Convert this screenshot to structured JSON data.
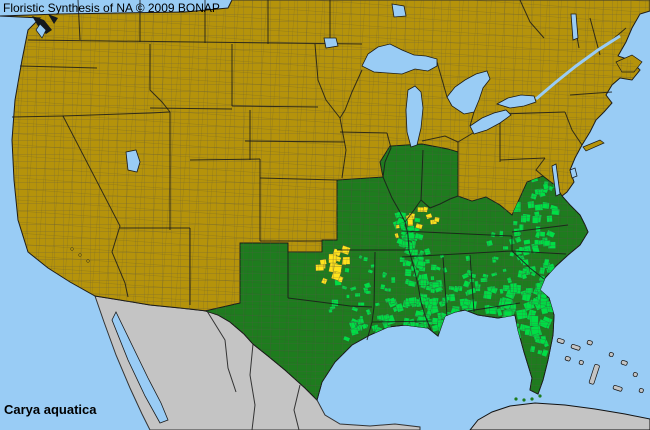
{
  "header": {
    "attribution": "Floristic Synthesis of NA © 2009 BONAP"
  },
  "footer": {
    "species_name": "Carya aquatica"
  },
  "map": {
    "kind": "county-level species distribution map",
    "area_shown": "North America: contiguous United States, southern Canada, northern Mexico, Cuba and Bahamas",
    "colors": {
      "water": "#99CCF5",
      "land_no_record": "#B5930B",
      "land_outside_scope": "#C4C4C4",
      "state_present": "#1E7C1E",
      "county_present": "#00DE45",
      "county_rare": "#FFE31C",
      "state_border": "#1A1A1A",
      "county_border": "#6F6F6F",
      "foreign_border": "#333333",
      "text": "#000000"
    },
    "distribution": {
      "state_level_presence": [
        "Texas",
        "Oklahoma",
        "Missouri",
        "Illinois",
        "Indiana",
        "Kentucky",
        "Virginia",
        "Tennessee",
        "Arkansas",
        "Louisiana",
        "Mississippi",
        "Alabama",
        "Georgia",
        "South Carolina",
        "North Carolina",
        "Florida"
      ],
      "dense_county_presence": [
        "Mississippi Alluvial Valley",
        "Gulf Coastal Plain",
        "East Texas",
        "Louisiana",
        "Atlantic Coastal Plain",
        "Florida Peninsula"
      ],
      "rare_county_clusters": [
        "Central Oklahoma",
        "Lower Ohio and Wabash valleys (southern Illinois / southwest Indiana / western Kentucky)"
      ]
    }
  }
}
